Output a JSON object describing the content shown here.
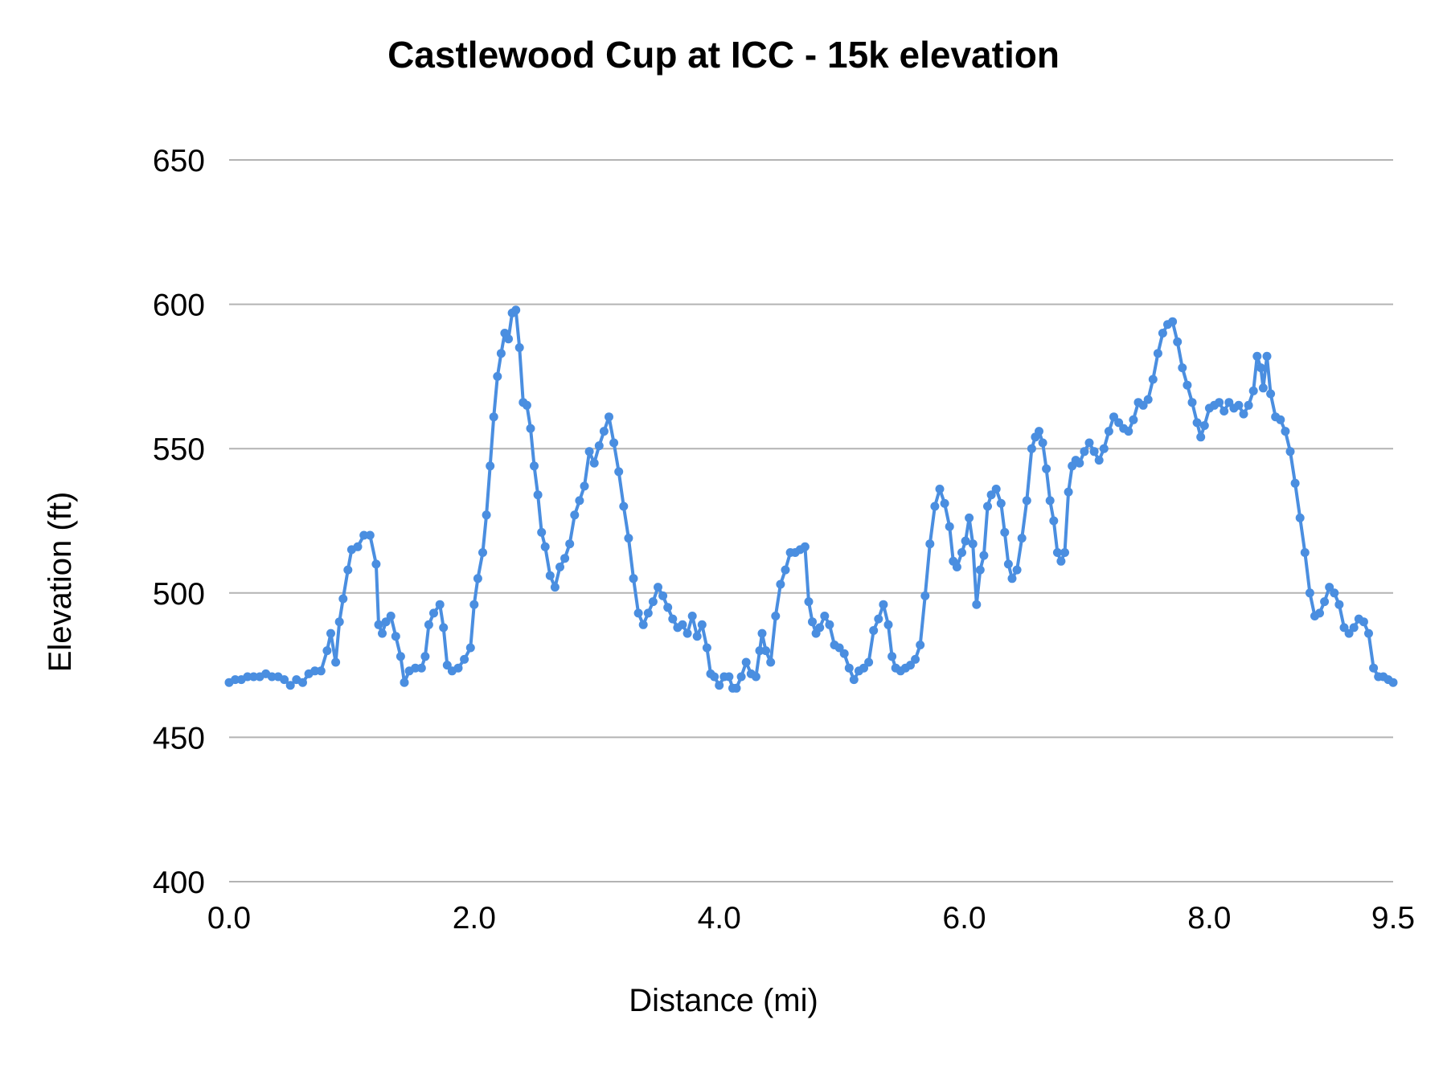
{
  "chart_data": {
    "type": "line",
    "title": "Castlewood Cup at ICC - 15k elevation",
    "xlabel": "Distance (mi)",
    "ylabel": "Elevation (ft)",
    "xlim": [
      0,
      9.5
    ],
    "ylim": [
      400,
      650
    ],
    "x_ticks": [
      "0.0",
      "2.0",
      "4.0",
      "6.0",
      "8.0",
      "9.5"
    ],
    "x_tick_values": [
      0,
      2,
      4,
      6,
      8,
      9.5
    ],
    "y_ticks": [
      "650",
      "600",
      "550",
      "500",
      "450",
      "400"
    ],
    "y_tick_values": [
      650,
      600,
      550,
      500,
      450,
      400
    ],
    "grid": "horizontal",
    "legend": "none",
    "colors": {
      "series": "#4a8ee0",
      "grid": "#b3b3b3"
    },
    "series": [
      {
        "points": [
          [
            0.0,
            469
          ],
          [
            0.05,
            470
          ],
          [
            0.1,
            470
          ],
          [
            0.15,
            471
          ],
          [
            0.2,
            471
          ],
          [
            0.25,
            471
          ],
          [
            0.3,
            472
          ],
          [
            0.35,
            471
          ],
          [
            0.4,
            471
          ],
          [
            0.45,
            470
          ],
          [
            0.5,
            468
          ],
          [
            0.55,
            470
          ],
          [
            0.6,
            469
          ],
          [
            0.65,
            472
          ],
          [
            0.7,
            473
          ],
          [
            0.75,
            473
          ],
          [
            0.8,
            480
          ],
          [
            0.83,
            486
          ],
          [
            0.87,
            476
          ],
          [
            0.9,
            490
          ],
          [
            0.93,
            498
          ],
          [
            0.97,
            508
          ],
          [
            1.0,
            515
          ],
          [
            1.05,
            516
          ],
          [
            1.1,
            520
          ],
          [
            1.15,
            520
          ],
          [
            1.2,
            510
          ],
          [
            1.22,
            489
          ],
          [
            1.25,
            486
          ],
          [
            1.28,
            490
          ],
          [
            1.32,
            492
          ],
          [
            1.36,
            485
          ],
          [
            1.4,
            478
          ],
          [
            1.43,
            469
          ],
          [
            1.47,
            473
          ],
          [
            1.52,
            474
          ],
          [
            1.57,
            474
          ],
          [
            1.6,
            478
          ],
          [
            1.63,
            489
          ],
          [
            1.67,
            493
          ],
          [
            1.72,
            496
          ],
          [
            1.75,
            488
          ],
          [
            1.78,
            475
          ],
          [
            1.82,
            473
          ],
          [
            1.87,
            474
          ],
          [
            1.92,
            477
          ],
          [
            1.97,
            481
          ],
          [
            2.0,
            496
          ],
          [
            2.03,
            505
          ],
          [
            2.07,
            514
          ],
          [
            2.1,
            527
          ],
          [
            2.13,
            544
          ],
          [
            2.16,
            561
          ],
          [
            2.19,
            575
          ],
          [
            2.22,
            583
          ],
          [
            2.25,
            590
          ],
          [
            2.28,
            588
          ],
          [
            2.31,
            597
          ],
          [
            2.34,
            598
          ],
          [
            2.37,
            585
          ],
          [
            2.4,
            566
          ],
          [
            2.43,
            565
          ],
          [
            2.46,
            557
          ],
          [
            2.49,
            544
          ],
          [
            2.52,
            534
          ],
          [
            2.55,
            521
          ],
          [
            2.58,
            516
          ],
          [
            2.62,
            506
          ],
          [
            2.66,
            502
          ],
          [
            2.7,
            509
          ],
          [
            2.74,
            512
          ],
          [
            2.78,
            517
          ],
          [
            2.82,
            527
          ],
          [
            2.86,
            532
          ],
          [
            2.9,
            537
          ],
          [
            2.94,
            549
          ],
          [
            2.98,
            545
          ],
          [
            3.02,
            551
          ],
          [
            3.06,
            556
          ],
          [
            3.1,
            561
          ],
          [
            3.14,
            552
          ],
          [
            3.18,
            542
          ],
          [
            3.22,
            530
          ],
          [
            3.26,
            519
          ],
          [
            3.3,
            505
          ],
          [
            3.34,
            493
          ],
          [
            3.38,
            489
          ],
          [
            3.42,
            493
          ],
          [
            3.46,
            497
          ],
          [
            3.5,
            502
          ],
          [
            3.54,
            499
          ],
          [
            3.58,
            495
          ],
          [
            3.62,
            491
          ],
          [
            3.66,
            488
          ],
          [
            3.7,
            489
          ],
          [
            3.74,
            486
          ],
          [
            3.78,
            492
          ],
          [
            3.82,
            485
          ],
          [
            3.86,
            489
          ],
          [
            3.9,
            481
          ],
          [
            3.93,
            472
          ],
          [
            3.96,
            471
          ],
          [
            4.0,
            468
          ],
          [
            4.04,
            471
          ],
          [
            4.08,
            471
          ],
          [
            4.11,
            467
          ],
          [
            4.14,
            467
          ],
          [
            4.18,
            471
          ],
          [
            4.22,
            476
          ],
          [
            4.26,
            472
          ],
          [
            4.3,
            471
          ],
          [
            4.33,
            480
          ],
          [
            4.35,
            486
          ],
          [
            4.38,
            480
          ],
          [
            4.42,
            476
          ],
          [
            4.46,
            492
          ],
          [
            4.5,
            503
          ],
          [
            4.54,
            508
          ],
          [
            4.58,
            514
          ],
          [
            4.62,
            514
          ],
          [
            4.66,
            515
          ],
          [
            4.7,
            516
          ],
          [
            4.73,
            497
          ],
          [
            4.76,
            490
          ],
          [
            4.79,
            486
          ],
          [
            4.82,
            488
          ],
          [
            4.86,
            492
          ],
          [
            4.9,
            489
          ],
          [
            4.94,
            482
          ],
          [
            4.98,
            481
          ],
          [
            5.02,
            479
          ],
          [
            5.06,
            474
          ],
          [
            5.1,
            470
          ],
          [
            5.14,
            473
          ],
          [
            5.18,
            474
          ],
          [
            5.22,
            476
          ],
          [
            5.26,
            487
          ],
          [
            5.3,
            491
          ],
          [
            5.34,
            496
          ],
          [
            5.38,
            489
          ],
          [
            5.41,
            478
          ],
          [
            5.44,
            474
          ],
          [
            5.48,
            473
          ],
          [
            5.52,
            474
          ],
          [
            5.56,
            475
          ],
          [
            5.6,
            477
          ],
          [
            5.64,
            482
          ],
          [
            5.68,
            499
          ],
          [
            5.72,
            517
          ],
          [
            5.76,
            530
          ],
          [
            5.8,
            536
          ],
          [
            5.84,
            531
          ],
          [
            5.88,
            523
          ],
          [
            5.91,
            511
          ],
          [
            5.94,
            509
          ],
          [
            5.98,
            514
          ],
          [
            6.01,
            518
          ],
          [
            6.04,
            526
          ],
          [
            6.07,
            517
          ],
          [
            6.1,
            496
          ],
          [
            6.13,
            508
          ],
          [
            6.16,
            513
          ],
          [
            6.19,
            530
          ],
          [
            6.22,
            534
          ],
          [
            6.26,
            536
          ],
          [
            6.3,
            531
          ],
          [
            6.33,
            521
          ],
          [
            6.36,
            510
          ],
          [
            6.39,
            505
          ],
          [
            6.43,
            508
          ],
          [
            6.47,
            519
          ],
          [
            6.51,
            532
          ],
          [
            6.55,
            550
          ],
          [
            6.58,
            554
          ],
          [
            6.61,
            556
          ],
          [
            6.64,
            552
          ],
          [
            6.67,
            543
          ],
          [
            6.7,
            532
          ],
          [
            6.73,
            525
          ],
          [
            6.76,
            514
          ],
          [
            6.79,
            511
          ],
          [
            6.82,
            514
          ],
          [
            6.85,
            535
          ],
          [
            6.88,
            544
          ],
          [
            6.91,
            546
          ],
          [
            6.94,
            545
          ],
          [
            6.98,
            549
          ],
          [
            7.02,
            552
          ],
          [
            7.06,
            549
          ],
          [
            7.1,
            546
          ],
          [
            7.14,
            550
          ],
          [
            7.18,
            556
          ],
          [
            7.22,
            561
          ],
          [
            7.26,
            559
          ],
          [
            7.3,
            557
          ],
          [
            7.34,
            556
          ],
          [
            7.38,
            560
          ],
          [
            7.42,
            566
          ],
          [
            7.46,
            565
          ],
          [
            7.5,
            567
          ],
          [
            7.54,
            574
          ],
          [
            7.58,
            583
          ],
          [
            7.62,
            590
          ],
          [
            7.66,
            593
          ],
          [
            7.7,
            594
          ],
          [
            7.74,
            587
          ],
          [
            7.78,
            578
          ],
          [
            7.82,
            572
          ],
          [
            7.86,
            566
          ],
          [
            7.9,
            559
          ],
          [
            7.93,
            554
          ],
          [
            7.96,
            558
          ],
          [
            8.0,
            564
          ],
          [
            8.04,
            565
          ],
          [
            8.08,
            566
          ],
          [
            8.12,
            563
          ],
          [
            8.16,
            566
          ],
          [
            8.2,
            564
          ],
          [
            8.24,
            565
          ],
          [
            8.28,
            562
          ],
          [
            8.32,
            565
          ],
          [
            8.36,
            570
          ],
          [
            8.39,
            582
          ],
          [
            8.42,
            578
          ],
          [
            8.44,
            571
          ],
          [
            8.47,
            582
          ],
          [
            8.5,
            569
          ],
          [
            8.54,
            561
          ],
          [
            8.58,
            560
          ],
          [
            8.62,
            556
          ],
          [
            8.66,
            549
          ],
          [
            8.7,
            538
          ],
          [
            8.74,
            526
          ],
          [
            8.78,
            514
          ],
          [
            8.82,
            500
          ],
          [
            8.86,
            492
          ],
          [
            8.9,
            493
          ],
          [
            8.94,
            497
          ],
          [
            8.98,
            502
          ],
          [
            9.02,
            500
          ],
          [
            9.06,
            496
          ],
          [
            9.1,
            488
          ],
          [
            9.14,
            486
          ],
          [
            9.18,
            488
          ],
          [
            9.22,
            491
          ],
          [
            9.26,
            490
          ],
          [
            9.3,
            486
          ],
          [
            9.34,
            474
          ],
          [
            9.38,
            471
          ],
          [
            9.42,
            471
          ],
          [
            9.46,
            470
          ],
          [
            9.5,
            469
          ]
        ]
      }
    ]
  }
}
